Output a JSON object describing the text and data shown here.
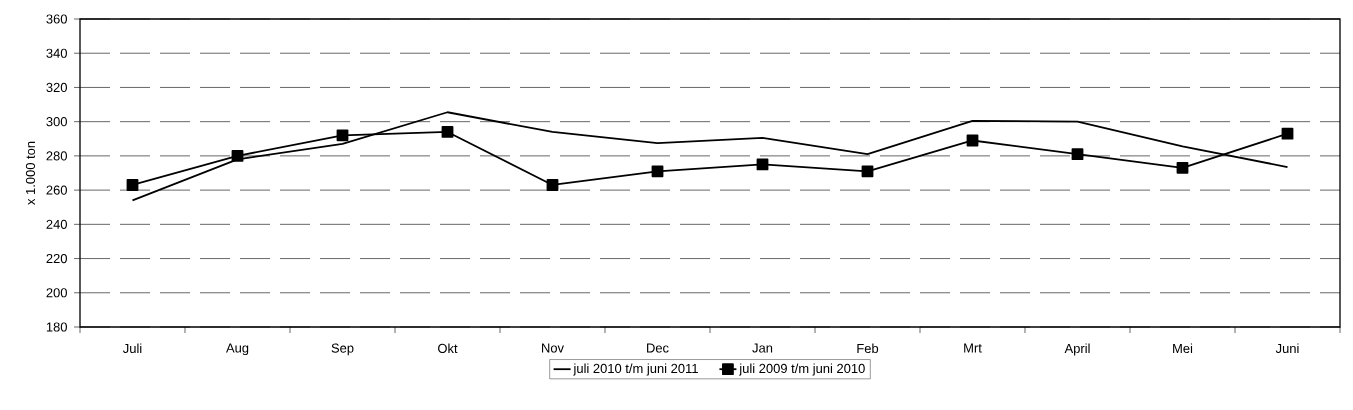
{
  "chart_data": {
    "type": "line",
    "ylabel": "x 1.000 ton",
    "categories": [
      "Juli",
      "Aug",
      "Sep",
      "Okt",
      "Nov",
      "Dec",
      "Jan",
      "Feb",
      "Mrt",
      "April",
      "Mei",
      "Juni"
    ],
    "series": [
      {
        "name": "juli 2010 t/m juni 2011",
        "color": "#000000",
        "marker": "none",
        "values": [
          254,
          278,
          287,
          305.5,
          294,
          287.5,
          290.5,
          281,
          300.5,
          300,
          285.5,
          273.5
        ]
      },
      {
        "name": "juli 2009 t/m juni 2010",
        "color": "#000000",
        "marker": "square",
        "values": [
          263,
          280,
          292,
          294,
          263,
          271,
          275,
          271,
          289,
          281,
          273,
          293
        ]
      }
    ],
    "ylim": [
      180,
      360
    ],
    "yticks": [
      180,
      200,
      220,
      240,
      260,
      280,
      300,
      320,
      340,
      360
    ],
    "grid": "y",
    "legend": "bottom"
  }
}
